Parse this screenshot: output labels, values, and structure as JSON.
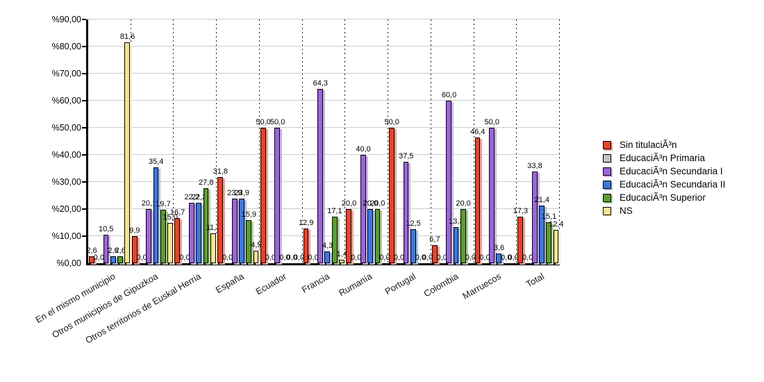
{
  "chart_data": {
    "type": "bar",
    "title": "",
    "categories": [
      "En el mismo municipio",
      "Otros municipios de Gipuzkoa",
      "Otros territorios de Euskal Herria",
      "España",
      "Ecuador",
      "Francia",
      "Rumanía",
      "Portugal",
      "Colombia",
      "Marruecos",
      "Total"
    ],
    "series": [
      {
        "name": "Sin titulaciÃ³n",
        "color": "#e8432b",
        "shadow": "#f4a294",
        "values": [
          2.6,
          9.9,
          16.7,
          31.8,
          50.0,
          12.9,
          20.0,
          50.0,
          6.7,
          46.4,
          17.3
        ]
      },
      {
        "name": "EducaciÃ³n Primaria",
        "color": "#c3c3c3",
        "shadow": "#e2e2e2",
        "values": [
          0.0,
          0.0,
          0.0,
          0.0,
          0.0,
          0.0,
          0.0,
          0.0,
          0.0,
          0.0,
          0.0
        ]
      },
      {
        "name": "EducaciÃ³n Secundaria I",
        "color": "#9a66da",
        "shadow": "#ccb4ec",
        "values": [
          10.5,
          20.1,
          22.2,
          23.9,
          50.0,
          64.3,
          40.0,
          37.5,
          60.0,
          50.0,
          33.8
        ]
      },
      {
        "name": "EducaciÃ³n Secundaria II",
        "color": "#3f77de",
        "shadow": "#a9c0f0",
        "values": [
          2.6,
          35.4,
          22.2,
          23.9,
          0.0,
          4.3,
          20.0,
          12.5,
          13.3,
          3.6,
          21.4
        ]
      },
      {
        "name": "EducaciÃ³n Superior",
        "color": "#5d9c33",
        "shadow": "#b0cd94",
        "values": [
          2.6,
          19.7,
          27.8,
          15.9,
          0.0,
          17.1,
          20.0,
          0.0,
          20.0,
          0.0,
          15.1
        ]
      },
      {
        "name": "NS",
        "color": "#f4e492",
        "shadow": "#faf2cd",
        "values": [
          81.6,
          15.0,
          11.1,
          4.5,
          0.0,
          1.4,
          0.0,
          0.0,
          0.0,
          0.0,
          12.4
        ]
      }
    ],
    "ylim": [
      0,
      90
    ],
    "y_tick_labels": [
      "%90,00",
      "%80,00",
      "%70,00",
      "%60,00",
      "%50,00",
      "%40,00",
      "%30,00",
      "%20,00",
      "%10,00",
      "%0,00"
    ],
    "value_label_format": "one decimal, comma separator (e.g. 81,6)",
    "grid": {
      "horizontal": "solid light gray every 10%",
      "vertical": "dotted black group separators"
    },
    "legend_position": "right"
  }
}
